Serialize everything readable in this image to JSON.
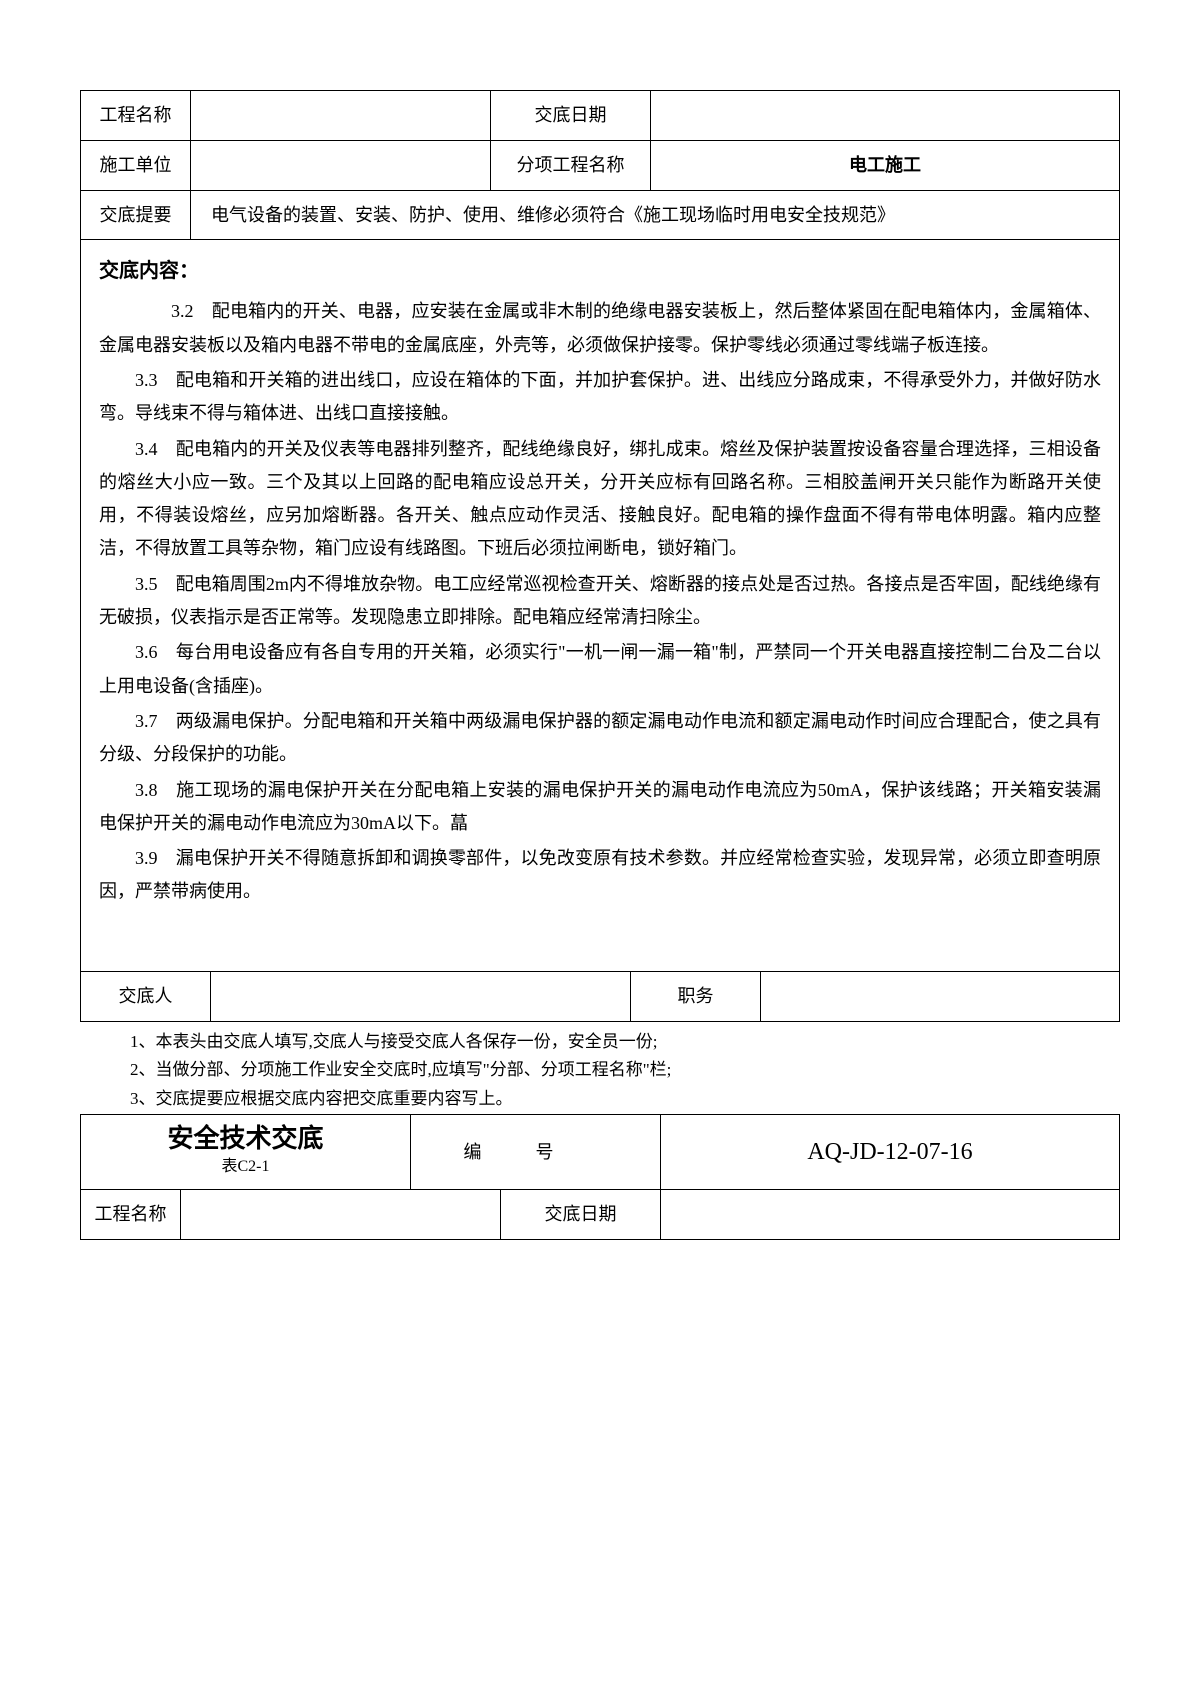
{
  "header": {
    "row1_label1": "工程名称",
    "row1_val1": "",
    "row1_label2": "交底日期",
    "row1_val2": "",
    "row2_label1": "施工单位",
    "row2_val1": "",
    "row2_label2": "分项工程名称",
    "row2_val2": "电工施工",
    "row3_label": "交底提要",
    "row3_val": "电气设备的装置、安装、防护、使用、维修必须符合《施工现场临时用电安全技规范》"
  },
  "content": {
    "title": "交底内容：",
    "paras": [
      "3.2　配电箱内的开关、电器，应安装在金属或非木制的绝缘电器安装板上，然后整体紧固在配电箱体内，金属箱体、金属电器安装板以及箱内电器不带电的金属底座，外壳等，必须做保护接零。保护零线必须通过零线端子板连接。",
      "3.3　配电箱和开关箱的进出线口，应设在箱体的下面，并加护套保护。进、出线应分路成束，不得承受外力，并做好防水弯。导线束不得与箱体进、出线口直接接触。",
      "3.4　配电箱内的开关及仪表等电器排列整齐，配线绝缘良好，绑扎成束。熔丝及保护装置按设备容量合理选择，三相设备的熔丝大小应一致。三个及其以上回路的配电箱应设总开关，分开关应标有回路名称。三相胶盖闸开关只能作为断路开关使用，不得装设熔丝，应另加熔断器。各开关、触点应动作灵活、接触良好。配电箱的操作盘面不得有带电体明露。箱内应整洁，不得放置工具等杂物，箱门应设有线路图。下班后必须拉闸断电，锁好箱门。",
      "3.5　配电箱周围2m内不得堆放杂物。电工应经常巡视检查开关、熔断器的接点处是否过热。各接点是否牢固，配线绝缘有无破损，仪表指示是否正常等。发现隐患立即排除。配电箱应经常清扫除尘。",
      "3.6　每台用电设备应有各自专用的开关箱，必须实行\"一机一闸一漏一箱\"制，严禁同一个开关电器直接控制二台及二台以上用电设备(含插座)。",
      "3.7　两级漏电保护。分配电箱和开关箱中两级漏电保护器的额定漏电动作电流和额定漏电动作时间应合理配合，使之具有分级、分段保护的功能。",
      "3.8　施工现场的漏电保护开关在分配电箱上安装的漏电保护开关的漏电动作电流应为50mA，保护该线路；开关箱安装漏电保护开关的漏电动作电流应为30mA以下。蕌",
      "3.9　漏电保护开关不得随意拆卸和调换零部件，以免改变原有技术参数。并应经常检查实验，发现异常，必须立即查明原因，严禁带病使用。"
    ]
  },
  "signature": {
    "label1": "交底人",
    "val1": "",
    "label2": "职务",
    "val2": ""
  },
  "notes": [
    "1、本表头由交底人填写,交底人与接受交底人各保存一份，安全员一份;",
    "2、当做分部、分项施工作业安全交底时,应填写\"分部、分项工程名称\"栏;",
    "3、交底提要应根据交底内容把交底重要内容写上。"
  ],
  "footer": {
    "title": "安全技术交底",
    "subtitle": "表C2-1",
    "num_label": "编号",
    "code": "AQ-JD-12-07-16",
    "row2_label1": "工程名称",
    "row2_val1": "",
    "row2_label2": "交底日期",
    "row2_val2": ""
  }
}
